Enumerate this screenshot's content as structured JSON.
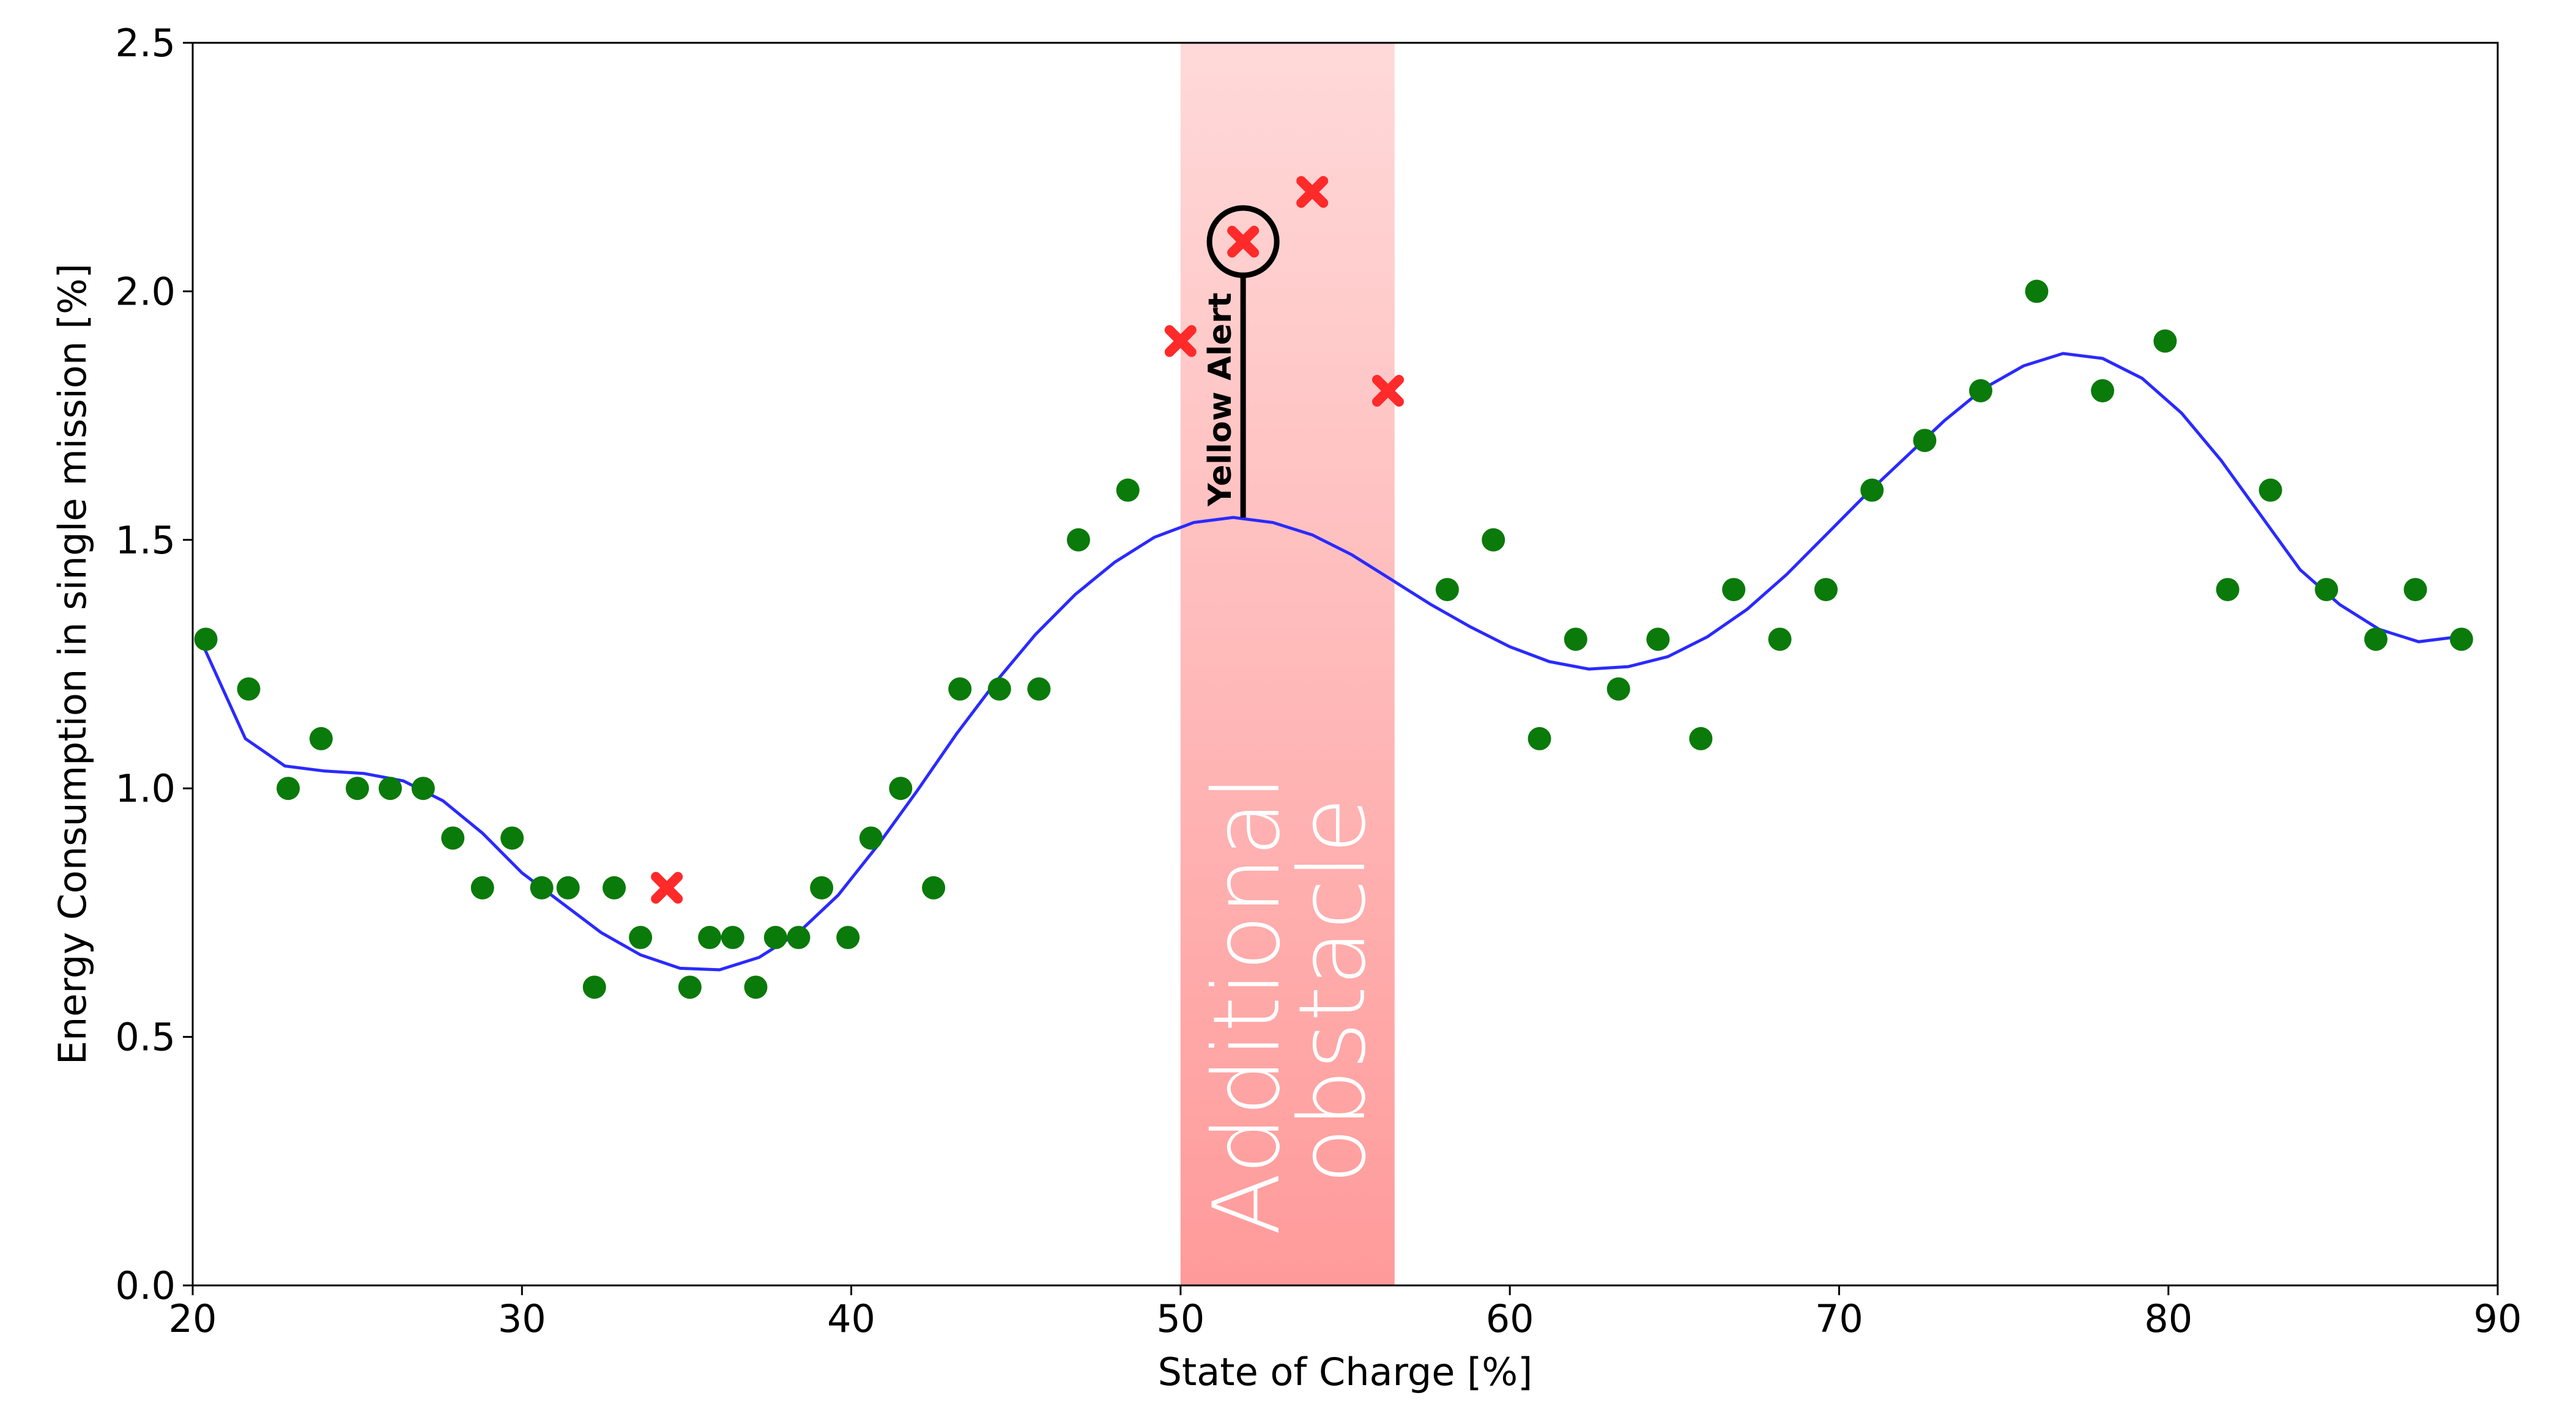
{
  "chart_data": {
    "type": "scatter",
    "title": "",
    "xlabel": "State of Charge [%]",
    "ylabel": "Energy Consumption  in single mission [%]",
    "xlim": [
      20,
      90
    ],
    "ylim": [
      0.0,
      2.5
    ],
    "xticks": [
      20,
      30,
      40,
      50,
      60,
      70,
      80,
      90
    ],
    "yticks": [
      0.0,
      0.5,
      1.0,
      1.5,
      2.0,
      2.5
    ],
    "ytick_labels": [
      "0.0",
      "0.5",
      "1.0",
      "1.5",
      "2.0",
      "2.5"
    ],
    "grid": false,
    "colors": {
      "normal_points": "#0a7a0a",
      "anomaly_points": "#ff2a2a",
      "fit_line": "#2a2aff",
      "band_top": "#ffd9d9",
      "band_bottom": "#ff9a9a"
    },
    "highlight_band": {
      "x_range": [
        50,
        56.5
      ],
      "label": "Additional obstacle"
    },
    "series": [
      {
        "name": "normal",
        "style": "circle",
        "points": [
          {
            "x": 20.4,
            "y": 1.3
          },
          {
            "x": 21.7,
            "y": 1.2
          },
          {
            "x": 22.9,
            "y": 1.0
          },
          {
            "x": 23.9,
            "y": 1.1
          },
          {
            "x": 25.0,
            "y": 1.0
          },
          {
            "x": 26.0,
            "y": 1.0
          },
          {
            "x": 27.0,
            "y": 1.0
          },
          {
            "x": 27.9,
            "y": 0.9
          },
          {
            "x": 28.8,
            "y": 0.8
          },
          {
            "x": 29.7,
            "y": 0.9
          },
          {
            "x": 30.6,
            "y": 0.8
          },
          {
            "x": 31.4,
            "y": 0.8
          },
          {
            "x": 32.2,
            "y": 0.6
          },
          {
            "x": 32.8,
            "y": 0.8
          },
          {
            "x": 33.6,
            "y": 0.7
          },
          {
            "x": 35.1,
            "y": 0.6
          },
          {
            "x": 35.7,
            "y": 0.7
          },
          {
            "x": 36.4,
            "y": 0.7
          },
          {
            "x": 37.1,
            "y": 0.6
          },
          {
            "x": 37.7,
            "y": 0.7
          },
          {
            "x": 38.4,
            "y": 0.7
          },
          {
            "x": 39.1,
            "y": 0.8
          },
          {
            "x": 39.9,
            "y": 0.7
          },
          {
            "x": 40.6,
            "y": 0.9
          },
          {
            "x": 41.5,
            "y": 1.0
          },
          {
            "x": 42.5,
            "y": 0.8
          },
          {
            "x": 43.3,
            "y": 1.2
          },
          {
            "x": 44.5,
            "y": 1.2
          },
          {
            "x": 45.7,
            "y": 1.2
          },
          {
            "x": 46.9,
            "y": 1.5
          },
          {
            "x": 48.4,
            "y": 1.6
          },
          {
            "x": 58.1,
            "y": 1.4
          },
          {
            "x": 59.5,
            "y": 1.5
          },
          {
            "x": 60.9,
            "y": 1.1
          },
          {
            "x": 62.0,
            "y": 1.3
          },
          {
            "x": 63.3,
            "y": 1.2
          },
          {
            "x": 64.5,
            "y": 1.3
          },
          {
            "x": 65.8,
            "y": 1.1
          },
          {
            "x": 66.8,
            "y": 1.4
          },
          {
            "x": 68.2,
            "y": 1.3
          },
          {
            "x": 69.6,
            "y": 1.4
          },
          {
            "x": 71.0,
            "y": 1.6
          },
          {
            "x": 72.6,
            "y": 1.7
          },
          {
            "x": 74.3,
            "y": 1.8
          },
          {
            "x": 76.0,
            "y": 2.0
          },
          {
            "x": 78.0,
            "y": 1.8
          },
          {
            "x": 79.9,
            "y": 1.9
          },
          {
            "x": 81.8,
            "y": 1.4
          },
          {
            "x": 83.1,
            "y": 1.6
          },
          {
            "x": 84.8,
            "y": 1.4
          },
          {
            "x": 86.3,
            "y": 1.3
          },
          {
            "x": 87.5,
            "y": 1.4
          },
          {
            "x": 88.9,
            "y": 1.3
          }
        ]
      },
      {
        "name": "anomaly",
        "style": "x",
        "points": [
          {
            "x": 34.4,
            "y": 0.8
          },
          {
            "x": 50.0,
            "y": 1.9
          },
          {
            "x": 51.9,
            "y": 2.1
          },
          {
            "x": 54.0,
            "y": 2.2
          },
          {
            "x": 56.3,
            "y": 1.8
          }
        ]
      },
      {
        "name": "fit",
        "style": "line",
        "points": [
          {
            "x": 20.3,
            "y": 1.29
          },
          {
            "x": 21.6,
            "y": 1.1
          },
          {
            "x": 22.8,
            "y": 1.045
          },
          {
            "x": 24.0,
            "y": 1.035
          },
          {
            "x": 25.2,
            "y": 1.03
          },
          {
            "x": 26.4,
            "y": 1.015
          },
          {
            "x": 27.6,
            "y": 0.975
          },
          {
            "x": 28.8,
            "y": 0.91
          },
          {
            "x": 30.0,
            "y": 0.83
          },
          {
            "x": 31.2,
            "y": 0.77
          },
          {
            "x": 32.4,
            "y": 0.71
          },
          {
            "x": 33.6,
            "y": 0.665
          },
          {
            "x": 34.8,
            "y": 0.638
          },
          {
            "x": 36.0,
            "y": 0.635
          },
          {
            "x": 37.2,
            "y": 0.66
          },
          {
            "x": 38.4,
            "y": 0.71
          },
          {
            "x": 39.6,
            "y": 0.785
          },
          {
            "x": 40.8,
            "y": 0.885
          },
          {
            "x": 42.0,
            "y": 0.995
          },
          {
            "x": 43.2,
            "y": 1.11
          },
          {
            "x": 44.4,
            "y": 1.215
          },
          {
            "x": 45.6,
            "y": 1.31
          },
          {
            "x": 46.8,
            "y": 1.39
          },
          {
            "x": 48.0,
            "y": 1.455
          },
          {
            "x": 49.2,
            "y": 1.505
          },
          {
            "x": 50.4,
            "y": 1.535
          },
          {
            "x": 51.6,
            "y": 1.545
          },
          {
            "x": 52.8,
            "y": 1.535
          },
          {
            "x": 54.0,
            "y": 1.51
          },
          {
            "x": 55.2,
            "y": 1.47
          },
          {
            "x": 56.4,
            "y": 1.42
          },
          {
            "x": 57.6,
            "y": 1.37
          },
          {
            "x": 58.8,
            "y": 1.325
          },
          {
            "x": 60.0,
            "y": 1.285
          },
          {
            "x": 61.2,
            "y": 1.255
          },
          {
            "x": 62.4,
            "y": 1.24
          },
          {
            "x": 63.6,
            "y": 1.245
          },
          {
            "x": 64.8,
            "y": 1.265
          },
          {
            "x": 66.0,
            "y": 1.305
          },
          {
            "x": 67.2,
            "y": 1.36
          },
          {
            "x": 68.4,
            "y": 1.43
          },
          {
            "x": 69.6,
            "y": 1.51
          },
          {
            "x": 70.8,
            "y": 1.59
          },
          {
            "x": 72.0,
            "y": 1.665
          },
          {
            "x": 73.2,
            "y": 1.74
          },
          {
            "x": 74.4,
            "y": 1.805
          },
          {
            "x": 75.6,
            "y": 1.85
          },
          {
            "x": 76.8,
            "y": 1.875
          },
          {
            "x": 78.0,
            "y": 1.865
          },
          {
            "x": 79.2,
            "y": 1.825
          },
          {
            "x": 80.4,
            "y": 1.755
          },
          {
            "x": 81.6,
            "y": 1.66
          },
          {
            "x": 82.8,
            "y": 1.55
          },
          {
            "x": 84.0,
            "y": 1.44
          },
          {
            "x": 85.2,
            "y": 1.37
          },
          {
            "x": 86.4,
            "y": 1.32
          },
          {
            "x": 87.6,
            "y": 1.295
          },
          {
            "x": 88.8,
            "y": 1.305
          },
          {
            "x": 89.0,
            "y": 1.31
          }
        ]
      }
    ],
    "annotations": [
      {
        "text": "Yellow Alert",
        "target": {
          "x": 51.9,
          "y": 2.1
        },
        "anchor": {
          "x": 51.9,
          "y": 1.545
        }
      }
    ]
  }
}
